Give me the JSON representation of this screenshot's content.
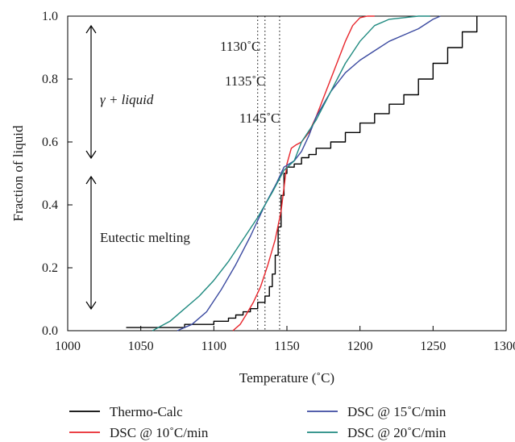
{
  "chart_data": {
    "type": "line",
    "xlabel": "Temperature (˚C)",
    "ylabel": "Fraction of liquid",
    "xlim": [
      1000,
      1300
    ],
    "ylim": [
      0,
      1.0
    ],
    "xticks": [
      1000,
      1050,
      1100,
      1150,
      1200,
      1250,
      1300
    ],
    "yticks": [
      0.0,
      0.2,
      0.4,
      0.6,
      0.8,
      1.0
    ],
    "xtick_labels": [
      "1000",
      "1050",
      "1100",
      "1150",
      "1200",
      "1250",
      "1300"
    ],
    "ytick_labels": [
      "0.0",
      "0.2",
      "0.4",
      "0.6",
      "0.8",
      "1.0"
    ],
    "grid": false,
    "legend_position": "bottom",
    "series": [
      {
        "name": "Thermo-Calc",
        "color": "#000000",
        "step": true,
        "x": [
          1040,
          1060,
          1080,
          1100,
          1110,
          1115,
          1120,
          1125,
          1130,
          1135,
          1138,
          1140,
          1142,
          1144,
          1146,
          1148,
          1150,
          1155,
          1160,
          1165,
          1170,
          1180,
          1190,
          1200,
          1210,
          1220,
          1230,
          1240,
          1250,
          1260,
          1270,
          1280
        ],
        "y": [
          0.01,
          0.01,
          0.02,
          0.03,
          0.04,
          0.05,
          0.06,
          0.07,
          0.09,
          0.11,
          0.14,
          0.18,
          0.24,
          0.33,
          0.43,
          0.5,
          0.52,
          0.53,
          0.55,
          0.56,
          0.58,
          0.6,
          0.63,
          0.66,
          0.69,
          0.72,
          0.75,
          0.8,
          0.85,
          0.9,
          0.95,
          1.0
        ]
      },
      {
        "name": "DSC @ 10˚C/min",
        "color": "#e8262c",
        "step": false,
        "x": [
          1113,
          1118,
          1122,
          1127,
          1132,
          1137,
          1142,
          1146,
          1150,
          1153,
          1156,
          1160,
          1165,
          1170,
          1175,
          1180,
          1185,
          1190,
          1195,
          1200,
          1205,
          1210
        ],
        "y": [
          0.0,
          0.02,
          0.05,
          0.09,
          0.14,
          0.21,
          0.29,
          0.38,
          0.53,
          0.58,
          0.59,
          0.6,
          0.63,
          0.68,
          0.74,
          0.8,
          0.86,
          0.92,
          0.97,
          0.995,
          1.0,
          1.0
        ]
      },
      {
        "name": "DSC @ 15˚C/min",
        "color": "#3b4aa0",
        "step": false,
        "x": [
          1075,
          1085,
          1095,
          1105,
          1115,
          1125,
          1135,
          1143,
          1148,
          1155,
          1160,
          1165,
          1170,
          1180,
          1190,
          1200,
          1210,
          1220,
          1230,
          1240,
          1250,
          1255
        ],
        "y": [
          0.0,
          0.02,
          0.06,
          0.13,
          0.21,
          0.3,
          0.4,
          0.47,
          0.52,
          0.54,
          0.57,
          0.62,
          0.68,
          0.76,
          0.82,
          0.86,
          0.89,
          0.92,
          0.94,
          0.96,
          0.99,
          1.0
        ]
      },
      {
        "name": "DSC @ 20˚C/min",
        "color": "#1f8a80",
        "step": false,
        "x": [
          1058,
          1070,
          1080,
          1090,
          1100,
          1110,
          1120,
          1130,
          1140,
          1148,
          1155,
          1160,
          1170,
          1180,
          1190,
          1200,
          1210,
          1220,
          1230,
          1240,
          1248
        ],
        "y": [
          0.0,
          0.03,
          0.07,
          0.11,
          0.16,
          0.22,
          0.29,
          0.36,
          0.44,
          0.51,
          0.54,
          0.6,
          0.67,
          0.76,
          0.85,
          0.92,
          0.97,
          0.99,
          0.995,
          1.0,
          1.0
        ]
      }
    ],
    "vlines": [
      1130,
      1135,
      1145
    ],
    "vline_labels": [
      "1130˚C",
      "1135˚C",
      "1145˚C"
    ],
    "annotations": {
      "upper_region": "γ + liquid",
      "lower_region": "Eutectic melting"
    }
  }
}
